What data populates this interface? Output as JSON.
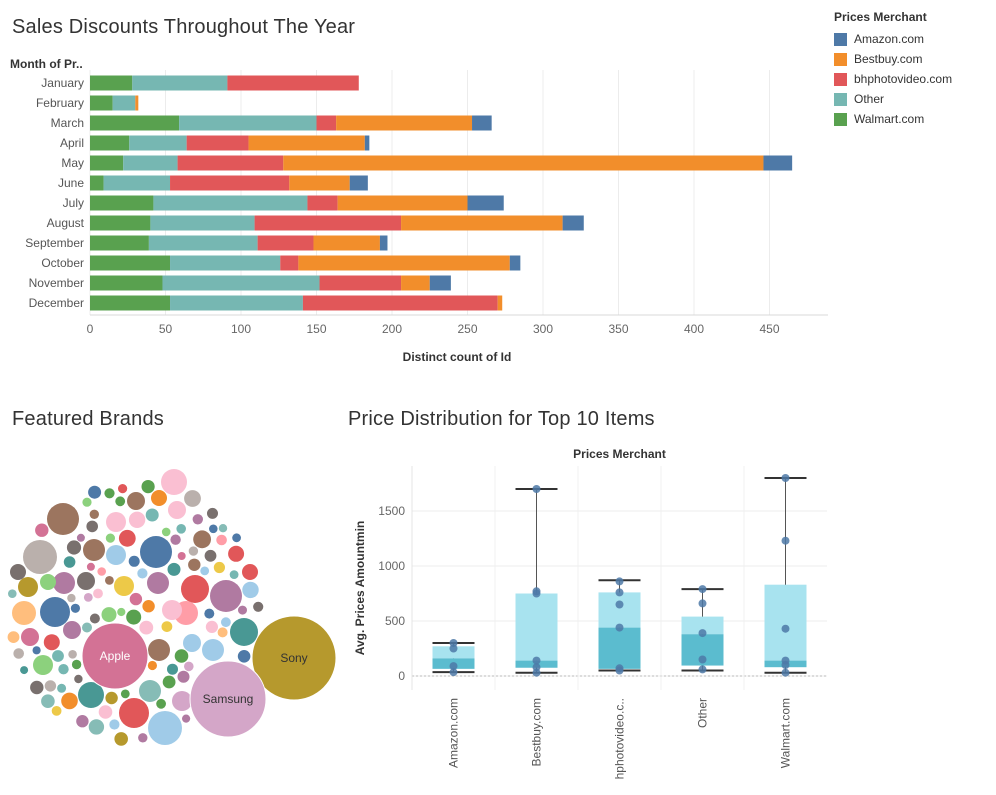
{
  "titles": {
    "sales": "Sales Discounts Throughout The Year",
    "brands": "Featured Brands",
    "price": "Price Distribution for Top 10 Items"
  },
  "colors": {
    "Amazon.com": "#4e79a7",
    "Bestbuy.com": "#f28e2b",
    "bhphotovideo.com": "#e15759",
    "Other": "#76b7b2",
    "Walmart.com": "#59a14f"
  },
  "chart_data": [
    {
      "type": "bar",
      "orientation": "horizontal",
      "stacked": true,
      "title": "Sales Discounts Throughout The Year",
      "row_header": "Month of Pr..",
      "xlabel": "Distinct count of Id",
      "xlim": [
        0,
        480
      ],
      "xticks": [
        0,
        50,
        100,
        150,
        200,
        250,
        300,
        350,
        400,
        450
      ],
      "categories": [
        "January",
        "February",
        "March",
        "April",
        "May",
        "June",
        "July",
        "August",
        "September",
        "October",
        "November",
        "December"
      ],
      "legend_title": "Prices Merchant",
      "legend_position": "top-right",
      "series": [
        {
          "name": "Walmart.com",
          "values": [
            28,
            15,
            59,
            26,
            22,
            9,
            42,
            40,
            39,
            53,
            48,
            53
          ]
        },
        {
          "name": "Other",
          "values": [
            63,
            15,
            91,
            38,
            36,
            44,
            102,
            69,
            72,
            73,
            104,
            88
          ]
        },
        {
          "name": "bhphotovideo.com",
          "values": [
            87,
            0,
            13,
            41,
            70,
            79,
            20,
            97,
            37,
            12,
            54,
            129
          ]
        },
        {
          "name": "Bestbuy.com",
          "values": [
            0,
            2,
            90,
            77,
            318,
            40,
            86,
            107,
            44,
            140,
            19,
            3
          ]
        },
        {
          "name": "Amazon.com",
          "values": [
            0,
            0,
            13,
            3,
            19,
            12,
            24,
            14,
            5,
            7,
            14,
            0
          ]
        }
      ]
    },
    {
      "type": "bubble",
      "title": "Featured Brands",
      "labeled": [
        {
          "label": "Sony",
          "size": 100
        },
        {
          "label": "Samsung",
          "size": 92
        },
        {
          "label": "Apple",
          "size": 68
        }
      ]
    },
    {
      "type": "boxplot",
      "title": "Price Distribution for Top 10 Items",
      "column_header": "Prices Merchant",
      "ylabel": "Avg. Prices Amountmin",
      "ylim": [
        -70,
        1900
      ],
      "yticks": [
        0,
        500,
        1000,
        1500
      ],
      "categories": [
        "Amazon.com",
        "Bestbuy.com",
        "bhphotovideo.c..",
        "Other",
        "Walmart.com"
      ],
      "boxes": [
        {
          "min": 35,
          "q1": 65,
          "median": 160,
          "q3": 270,
          "max": 300,
          "points": [
            35,
            90,
            250,
            300
          ]
        },
        {
          "min": 30,
          "q1": 75,
          "median": 140,
          "q3": 750,
          "max": 1700,
          "points": [
            30,
            80,
            140,
            750,
            770,
            1700
          ]
        },
        {
          "min": 50,
          "q1": 65,
          "median": 440,
          "q3": 760,
          "max": 870,
          "points": [
            50,
            70,
            440,
            650,
            760,
            860
          ]
        },
        {
          "min": 50,
          "q1": 95,
          "median": 380,
          "q3": 540,
          "max": 790,
          "points": [
            60,
            150,
            390,
            660,
            790
          ]
        },
        {
          "min": 30,
          "q1": 80,
          "median": 140,
          "q3": 830,
          "max": 1800,
          "points": [
            30,
            100,
            140,
            430,
            1230,
            1800
          ]
        }
      ]
    }
  ]
}
